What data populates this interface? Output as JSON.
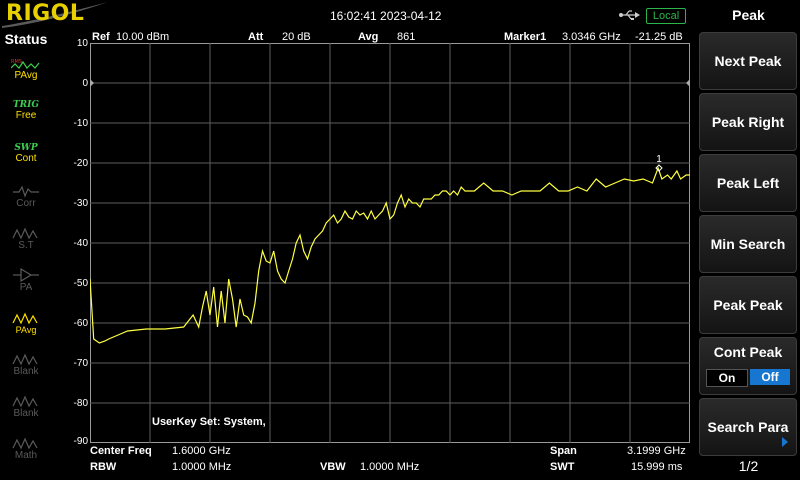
{
  "header": {
    "logo": "RIGOL",
    "datetime": "16:02:41 2023-04-12",
    "local": "Local",
    "usb_icon": "usb-icon"
  },
  "status": {
    "title": "Status",
    "items": [
      {
        "title": "RMS/AV",
        "value": "PAvg",
        "active": true
      },
      {
        "title": "TRIG",
        "value": "Free",
        "active": true
      },
      {
        "title": "SWP",
        "value": "Cont",
        "active": true
      },
      {
        "title": "",
        "value": "Corr",
        "active": false
      },
      {
        "title": "",
        "value": "S.T",
        "active": false
      },
      {
        "title": "",
        "value": "PA",
        "active": false
      },
      {
        "title": "",
        "value": "PAvg",
        "active": true
      },
      {
        "title": "",
        "value": "Blank",
        "active": false
      },
      {
        "title": "",
        "value": "Blank",
        "active": false
      },
      {
        "title": "",
        "value": "Math",
        "active": false
      }
    ]
  },
  "graph_header": {
    "ref_label": "Ref",
    "ref_value": "10.00 dBm",
    "att_label": "Att",
    "att_value": "20 dB",
    "avg_label": "Avg",
    "avg_value": "861",
    "marker_label": "Marker1",
    "marker_freq": "3.0346 GHz",
    "marker_level": "-21.25 dB"
  },
  "y_ticks": [
    "10",
    "0",
    "-10",
    "-20",
    "-30",
    "-40",
    "-50",
    "-60",
    "-70",
    "-80",
    "-90"
  ],
  "marker_number": "1",
  "userkey": "UserKey Set:   System,",
  "bottom": {
    "center_label": "Center Freq",
    "center_value": "1.6000 GHz",
    "span_label": "Span",
    "span_value": "3.1999 GHz",
    "rbw_label": "RBW",
    "rbw_value": "1.0000 MHz",
    "vbw_label": "VBW",
    "vbw_value": "1.0000 MHz",
    "swt_label": "SWT",
    "swt_value": "15.999 ms"
  },
  "menu": {
    "title": "Peak",
    "buttons": [
      "Next Peak",
      "Peak Right",
      "Peak Left",
      "Min Search",
      "Peak Peak"
    ],
    "cont_peak": {
      "label": "Cont Peak",
      "on": "On",
      "off": "Off",
      "state": "Off"
    },
    "search_para": "Search Para",
    "page": "1/2"
  },
  "chart_data": {
    "type": "line",
    "xlabel": "",
    "ylabel": "",
    "x_range_ghz": [
      0.0001,
      3.2
    ],
    "ylim": [
      -90,
      10
    ],
    "grid": true,
    "trace_color": "#ffff40",
    "series": [
      {
        "x": [
          0.0,
          0.02,
          0.05,
          0.08,
          0.1,
          0.15,
          0.2,
          0.3,
          0.4,
          0.5,
          0.55,
          0.58,
          0.6,
          0.62,
          0.64,
          0.66,
          0.68,
          0.7,
          0.72,
          0.74,
          0.76,
          0.78,
          0.8,
          0.82,
          0.84,
          0.86,
          0.88,
          0.9,
          0.92,
          0.94,
          0.96,
          0.98,
          1.0,
          1.02,
          1.04,
          1.06,
          1.08,
          1.1,
          1.12,
          1.14,
          1.16,
          1.18,
          1.2,
          1.22,
          1.24,
          1.26,
          1.28,
          1.3,
          1.32,
          1.34,
          1.36,
          1.38,
          1.4,
          1.42,
          1.44,
          1.46,
          1.48,
          1.5,
          1.52,
          1.54,
          1.56,
          1.58,
          1.6,
          1.62,
          1.64,
          1.66,
          1.68,
          1.7,
          1.72,
          1.74,
          1.76,
          1.78,
          1.8,
          1.82,
          1.84,
          1.86,
          1.88,
          1.9,
          1.92,
          1.94,
          1.96,
          1.98,
          2.0,
          2.05,
          2.1,
          2.15,
          2.2,
          2.25,
          2.3,
          2.35,
          2.4,
          2.45,
          2.5,
          2.55,
          2.6,
          2.65,
          2.7,
          2.75,
          2.8,
          2.85,
          2.9,
          2.95,
          3.0,
          3.03,
          3.05,
          3.08,
          3.1,
          3.13,
          3.15,
          3.18,
          3.2
        ],
        "y": [
          -49,
          -64,
          -65,
          -64.5,
          -64,
          -63,
          -62,
          -61.5,
          -61.5,
          -61,
          -58,
          -61,
          -56,
          -52,
          -58,
          -51,
          -61,
          -52,
          -60,
          -49,
          -54,
          -61,
          -54,
          -58,
          -58.5,
          -60,
          -55,
          -47,
          -42,
          -44.5,
          -45,
          -42,
          -47,
          -49,
          -50,
          -47,
          -44,
          -40,
          -38,
          -42,
          -44,
          -41,
          -39,
          -38,
          -37,
          -35,
          -34,
          -33,
          -35,
          -34,
          -32,
          -33.5,
          -34,
          -32,
          -33,
          -32.5,
          -34,
          -32,
          -34,
          -33,
          -32,
          -30,
          -34,
          -33,
          -30,
          -28,
          -31,
          -29,
          -30,
          -30,
          -31,
          -29,
          -29,
          -29,
          -28,
          -28,
          -27,
          -27,
          -28,
          -27,
          -28,
          -26,
          -27,
          -27,
          -25,
          -27,
          -27,
          -28,
          -27,
          -27,
          -27,
          -25,
          -27,
          -27,
          -26,
          -27,
          -24,
          -26,
          -25,
          -24,
          -24.5,
          -24,
          -25,
          -21.25,
          -24,
          -23,
          -24,
          -22,
          -24,
          -23,
          -23
        ]
      }
    ],
    "marker": {
      "x": 3.0346,
      "y": -21.25,
      "label": "1"
    }
  }
}
